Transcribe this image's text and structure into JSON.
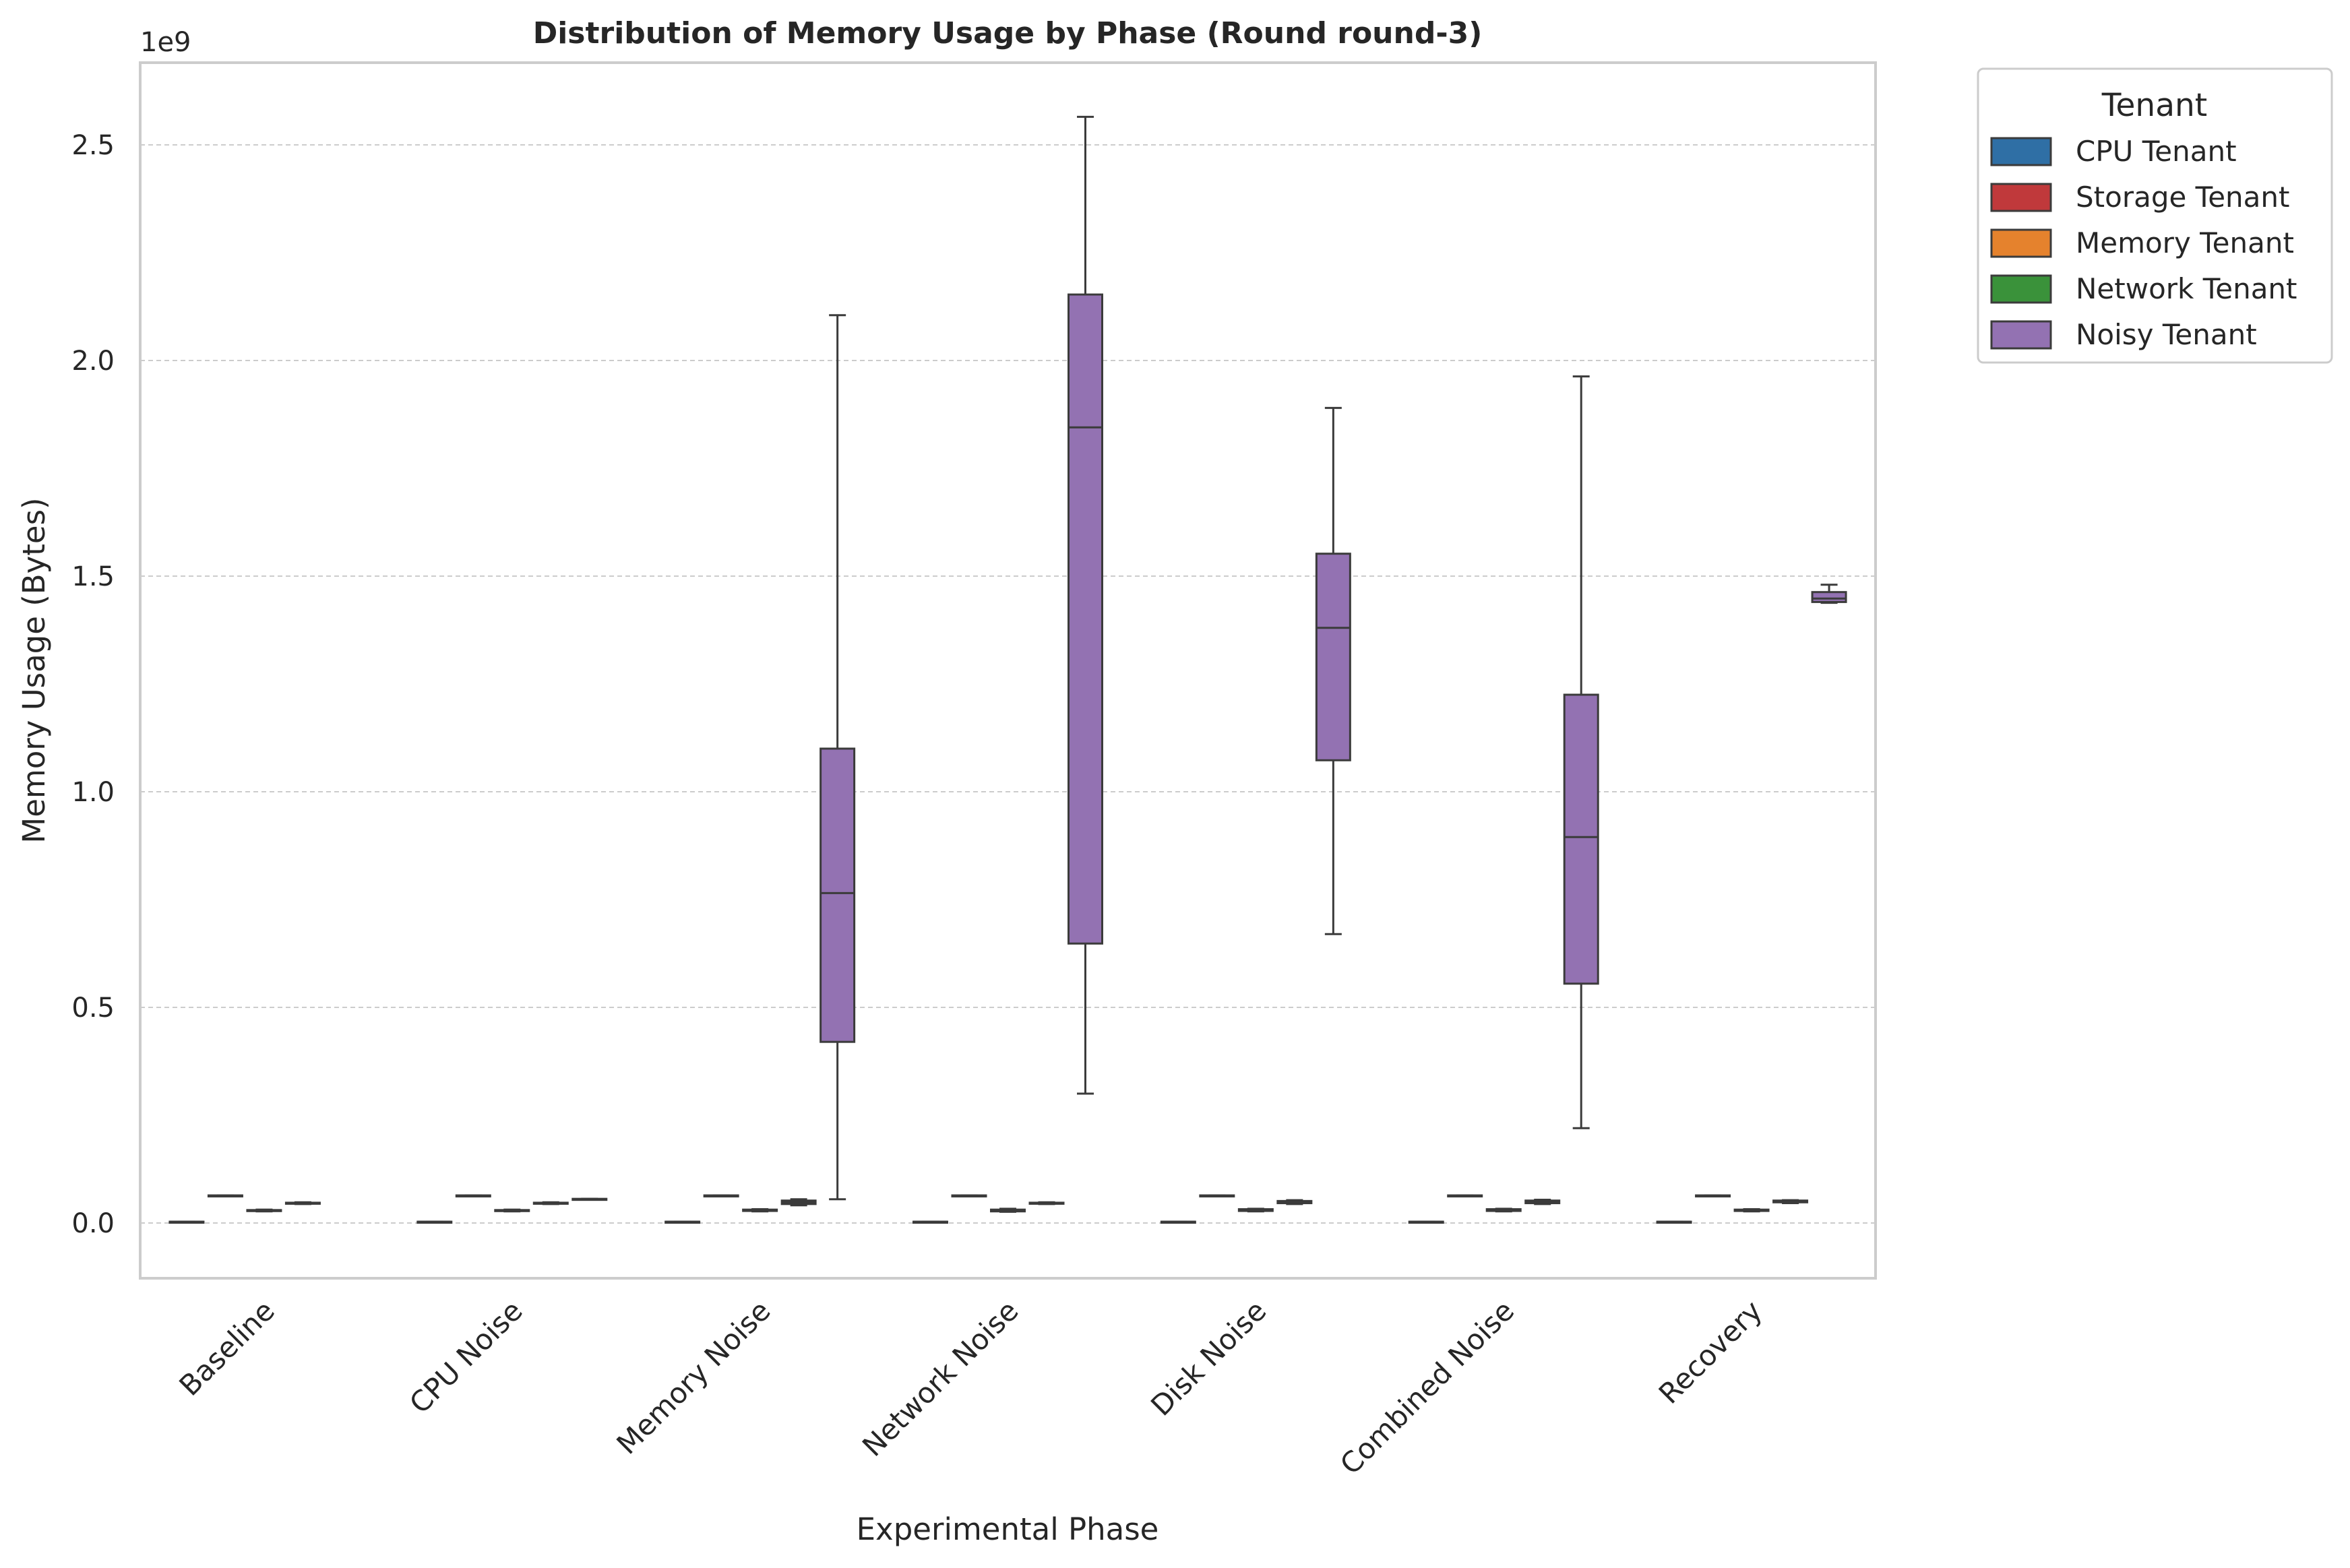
{
  "chart_data": {
    "type": "box",
    "title": "Distribution of Memory Usage by Phase (Round round-3)",
    "xlabel": "Experimental Phase",
    "ylabel": "Memory Usage (Bytes)",
    "y_offset_label": "1e9",
    "y_scale": 1000000000,
    "ylim": [
      -0.12,
      2.7
    ],
    "yticks": [
      0.0,
      0.5,
      1.0,
      1.5,
      2.0,
      2.5
    ],
    "ytick_labels": [
      "0.0",
      "0.5",
      "1.0",
      "1.5",
      "2.0",
      "2.5"
    ],
    "grid": true,
    "legend_title": "Tenant",
    "legend_position": "outside-top-right",
    "categories": [
      "Baseline",
      "CPU Noise",
      "Memory Noise",
      "Network Noise",
      "Disk Noise",
      "Combined Noise",
      "Recovery"
    ],
    "series": [
      {
        "name": "CPU Tenant",
        "color": "#2f6fa5",
        "boxes": [
          {
            "whislo": 0.003,
            "q1": 0.003,
            "med": 0.003,
            "q3": 0.003,
            "whishi": 0.003
          },
          {
            "whislo": 0.003,
            "q1": 0.003,
            "med": 0.003,
            "q3": 0.003,
            "whishi": 0.003
          },
          {
            "whislo": 0.003,
            "q1": 0.003,
            "med": 0.003,
            "q3": 0.003,
            "whishi": 0.003
          },
          {
            "whislo": 0.003,
            "q1": 0.003,
            "med": 0.003,
            "q3": 0.003,
            "whishi": 0.003
          },
          {
            "whislo": 0.003,
            "q1": 0.003,
            "med": 0.003,
            "q3": 0.003,
            "whishi": 0.003
          },
          {
            "whislo": 0.003,
            "q1": 0.003,
            "med": 0.003,
            "q3": 0.003,
            "whishi": 0.003
          },
          {
            "whislo": 0.003,
            "q1": 0.003,
            "med": 0.003,
            "q3": 0.003,
            "whishi": 0.003
          }
        ]
      },
      {
        "name": "Storage Tenant",
        "color": "#c0393b",
        "boxes": [
          {
            "whislo": 0.062,
            "q1": 0.062,
            "med": 0.063,
            "q3": 0.064,
            "whishi": 0.064
          },
          {
            "whislo": 0.062,
            "q1": 0.062,
            "med": 0.063,
            "q3": 0.064,
            "whishi": 0.064
          },
          {
            "whislo": 0.062,
            "q1": 0.062,
            "med": 0.063,
            "q3": 0.064,
            "whishi": 0.064
          },
          {
            "whislo": 0.062,
            "q1": 0.062,
            "med": 0.063,
            "q3": 0.064,
            "whishi": 0.064
          },
          {
            "whislo": 0.062,
            "q1": 0.062,
            "med": 0.063,
            "q3": 0.064,
            "whishi": 0.064
          },
          {
            "whislo": 0.062,
            "q1": 0.062,
            "med": 0.063,
            "q3": 0.064,
            "whishi": 0.064
          },
          {
            "whislo": 0.062,
            "q1": 0.062,
            "med": 0.063,
            "q3": 0.064,
            "whishi": 0.064
          }
        ]
      },
      {
        "name": "Memory Tenant",
        "color": "#e5822d",
        "boxes": [
          {
            "whislo": 0.027,
            "q1": 0.028,
            "med": 0.029,
            "q3": 0.03,
            "whishi": 0.031
          },
          {
            "whislo": 0.027,
            "q1": 0.028,
            "med": 0.029,
            "q3": 0.03,
            "whishi": 0.031
          },
          {
            "whislo": 0.027,
            "q1": 0.028,
            "med": 0.029,
            "q3": 0.031,
            "whishi": 0.032
          },
          {
            "whislo": 0.026,
            "q1": 0.027,
            "med": 0.029,
            "q3": 0.031,
            "whishi": 0.033
          },
          {
            "whislo": 0.027,
            "q1": 0.028,
            "med": 0.03,
            "q3": 0.032,
            "whishi": 0.033
          },
          {
            "whislo": 0.027,
            "q1": 0.028,
            "med": 0.03,
            "q3": 0.032,
            "whishi": 0.033
          },
          {
            "whislo": 0.027,
            "q1": 0.028,
            "med": 0.029,
            "q3": 0.031,
            "whishi": 0.032
          }
        ]
      },
      {
        "name": "Network Tenant",
        "color": "#3a923a",
        "boxes": [
          {
            "whislo": 0.044,
            "q1": 0.045,
            "med": 0.046,
            "q3": 0.047,
            "whishi": 0.048
          },
          {
            "whislo": 0.044,
            "q1": 0.045,
            "med": 0.046,
            "q3": 0.047,
            "whishi": 0.048
          },
          {
            "whislo": 0.041,
            "q1": 0.044,
            "med": 0.048,
            "q3": 0.052,
            "whishi": 0.055
          },
          {
            "whislo": 0.044,
            "q1": 0.045,
            "med": 0.046,
            "q3": 0.047,
            "whishi": 0.048
          },
          {
            "whislo": 0.044,
            "q1": 0.046,
            "med": 0.048,
            "q3": 0.051,
            "whishi": 0.053
          },
          {
            "whislo": 0.044,
            "q1": 0.046,
            "med": 0.049,
            "q3": 0.052,
            "whishi": 0.054
          },
          {
            "whislo": 0.046,
            "q1": 0.048,
            "med": 0.05,
            "q3": 0.052,
            "whishi": 0.053
          }
        ]
      },
      {
        "name": "Noisy Tenant",
        "color": "#9372b2",
        "boxes": [
          null,
          {
            "whislo": 0.055,
            "q1": 0.055,
            "med": 0.055,
            "q3": 0.056,
            "whishi": 0.056
          },
          {
            "whislo": 0.055,
            "q1": 0.42,
            "med": 0.765,
            "q3": 1.1,
            "whishi": 2.105
          },
          {
            "whislo": 0.3,
            "q1": 0.648,
            "med": 1.845,
            "q3": 2.153,
            "whishi": 2.565
          },
          {
            "whislo": 0.67,
            "q1": 1.073,
            "med": 1.38,
            "q3": 1.552,
            "whishi": 1.89
          },
          {
            "whislo": 0.22,
            "q1": 0.555,
            "med": 0.895,
            "q3": 1.225,
            "whishi": 1.963
          },
          {
            "whislo": 1.438,
            "q1": 1.44,
            "med": 1.448,
            "q3": 1.463,
            "whishi": 1.48
          }
        ]
      }
    ]
  }
}
